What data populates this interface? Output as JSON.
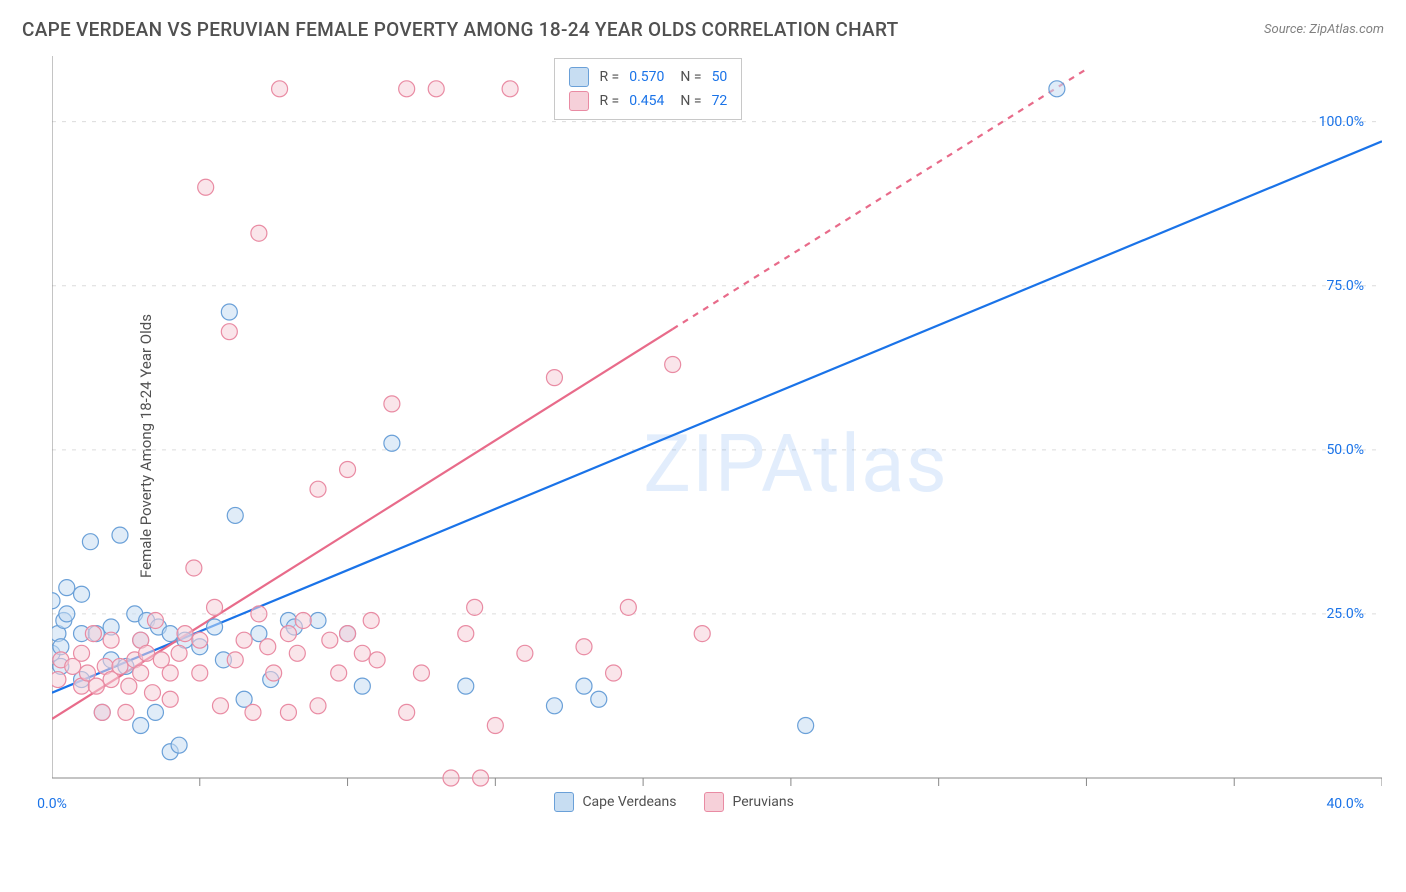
{
  "title": "CAPE VERDEAN VS PERUVIAN FEMALE POVERTY AMONG 18-24 YEAR OLDS CORRELATION CHART",
  "source": "Source: ZipAtlas.com",
  "ylabel": "Female Poverty Among 18-24 Year Olds",
  "watermark": "ZIPAtlas",
  "chart": {
    "type": "scatter",
    "xlim": [
      0,
      45
    ],
    "ylim": [
      0,
      110
    ],
    "xtick_label": {
      "pos": 0,
      "text": "0.0%"
    },
    "xtick_end_label": {
      "pos": 40,
      "text": "40.0%"
    },
    "xtick_minor": [
      5,
      10,
      15,
      20,
      25,
      30,
      35,
      40,
      45
    ],
    "yticks": [
      {
        "pos": 25,
        "label": "25.0%"
      },
      {
        "pos": 50,
        "label": "50.0%"
      },
      {
        "pos": 75,
        "label": "75.0%"
      },
      {
        "pos": 100,
        "label": "100.0%"
      }
    ],
    "grid_color": "#dcdcdc",
    "axis_color": "#888888",
    "background_color": "#ffffff",
    "marker_radius": 8,
    "marker_stroke_width": 1.2,
    "series": [
      {
        "name": "Cape Verdeans",
        "fill": "#c7ddf2",
        "stroke": "#6aa0d8",
        "fill_opacity": 0.55,
        "R": "0.570",
        "N": "50",
        "trend": {
          "color": "#1a73e8",
          "width": 2.2,
          "x1": 0,
          "y1": 13,
          "x2": 45,
          "y2": 97,
          "solid_to_x": 45
        },
        "points": [
          [
            0,
            19
          ],
          [
            0,
            27
          ],
          [
            0.2,
            22
          ],
          [
            0.3,
            20
          ],
          [
            0.3,
            17
          ],
          [
            0.4,
            24
          ],
          [
            0.5,
            25
          ],
          [
            0.5,
            29
          ],
          [
            1,
            15
          ],
          [
            1,
            22
          ],
          [
            1,
            28
          ],
          [
            1.3,
            36
          ],
          [
            1.5,
            22
          ],
          [
            1.7,
            10
          ],
          [
            2,
            23
          ],
          [
            2,
            18
          ],
          [
            2.3,
            37
          ],
          [
            2.5,
            17
          ],
          [
            2.8,
            25
          ],
          [
            3,
            21
          ],
          [
            3,
            8
          ],
          [
            3.2,
            24
          ],
          [
            3.5,
            10
          ],
          [
            3.6,
            23
          ],
          [
            4,
            4
          ],
          [
            4,
            22
          ],
          [
            4.3,
            5
          ],
          [
            4.5,
            21
          ],
          [
            5,
            20
          ],
          [
            5.5,
            23
          ],
          [
            5.8,
            18
          ],
          [
            6,
            71
          ],
          [
            6.2,
            40
          ],
          [
            6.5,
            12
          ],
          [
            7,
            22
          ],
          [
            7.4,
            15
          ],
          [
            8,
            24
          ],
          [
            8.2,
            23
          ],
          [
            9,
            24
          ],
          [
            10,
            22
          ],
          [
            10.5,
            14
          ],
          [
            11.5,
            51
          ],
          [
            14,
            14
          ],
          [
            17,
            11
          ],
          [
            18,
            14
          ],
          [
            18.5,
            12
          ],
          [
            22,
            105
          ],
          [
            23,
            105
          ],
          [
            25.5,
            8
          ],
          [
            34,
            105
          ]
        ]
      },
      {
        "name": "Peruvians",
        "fill": "#f6d0d9",
        "stroke": "#e98ba3",
        "fill_opacity": 0.55,
        "R": "0.454",
        "N": "72",
        "trend": {
          "color": "#e86b8a",
          "width": 2.2,
          "x1": 0,
          "y1": 9,
          "x2": 35,
          "y2": 108,
          "solid_to_x": 21,
          "dash": "6 6"
        },
        "points": [
          [
            0.2,
            15
          ],
          [
            0.3,
            18
          ],
          [
            0.7,
            17
          ],
          [
            1,
            14
          ],
          [
            1,
            19
          ],
          [
            1.2,
            16
          ],
          [
            1.4,
            22
          ],
          [
            1.5,
            14
          ],
          [
            1.7,
            10
          ],
          [
            1.8,
            17
          ],
          [
            2,
            15
          ],
          [
            2,
            21
          ],
          [
            2.3,
            17
          ],
          [
            2.5,
            10
          ],
          [
            2.6,
            14
          ],
          [
            2.8,
            18
          ],
          [
            3,
            16
          ],
          [
            3,
            21
          ],
          [
            3.2,
            19
          ],
          [
            3.4,
            13
          ],
          [
            3.5,
            24
          ],
          [
            3.7,
            18
          ],
          [
            4,
            16
          ],
          [
            4,
            12
          ],
          [
            4.3,
            19
          ],
          [
            4.5,
            22
          ],
          [
            4.8,
            32
          ],
          [
            5,
            16
          ],
          [
            5,
            21
          ],
          [
            5.2,
            90
          ],
          [
            5.5,
            26
          ],
          [
            5.7,
            11
          ],
          [
            6,
            68
          ],
          [
            6.2,
            18
          ],
          [
            6.5,
            21
          ],
          [
            6.8,
            10
          ],
          [
            7,
            25
          ],
          [
            7,
            83
          ],
          [
            7.3,
            20
          ],
          [
            7.5,
            16
          ],
          [
            7.7,
            105
          ],
          [
            8,
            10
          ],
          [
            8,
            22
          ],
          [
            8.3,
            19
          ],
          [
            8.5,
            24
          ],
          [
            9,
            11
          ],
          [
            9,
            44
          ],
          [
            9.4,
            21
          ],
          [
            9.7,
            16
          ],
          [
            10,
            22
          ],
          [
            10,
            47
          ],
          [
            10.5,
            19
          ],
          [
            10.8,
            24
          ],
          [
            11,
            18
          ],
          [
            11.5,
            57
          ],
          [
            12,
            10
          ],
          [
            12,
            105
          ],
          [
            12.5,
            16
          ],
          [
            13,
            105
          ],
          [
            13.5,
            0
          ],
          [
            14,
            22
          ],
          [
            14.3,
            26
          ],
          [
            15,
            8
          ],
          [
            15.5,
            105
          ],
          [
            16,
            19
          ],
          [
            17,
            61
          ],
          [
            18,
            20
          ],
          [
            19,
            16
          ],
          [
            19.5,
            26
          ],
          [
            21,
            63
          ],
          [
            22,
            22
          ],
          [
            14.5,
            0
          ]
        ]
      }
    ]
  },
  "legend_top": {
    "r_label": "R =",
    "n_label": "N ="
  },
  "legend_bottom": {
    "items": [
      {
        "label": "Cape Verdeans"
      },
      {
        "label": "Peruvians"
      }
    ]
  }
}
